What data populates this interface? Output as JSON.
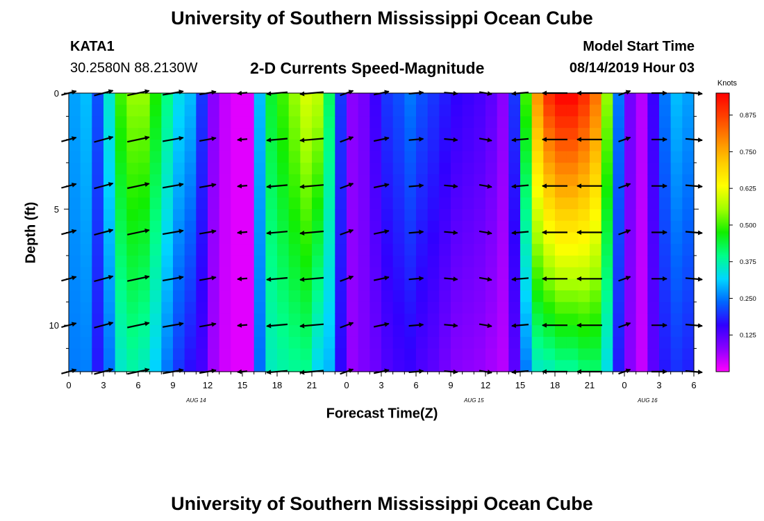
{
  "header": {
    "title_top": "University of Southern Mississippi Ocean Cube",
    "title_bottom": "University of Southern Mississippi Ocean Cube",
    "station_id": "KATA1",
    "coordinates": "30.2580N 88.2130W",
    "model_start_label": "Model Start Time",
    "model_start_value": "08/14/2019 Hour 03"
  },
  "colors": {
    "background": "#ffffff",
    "arrow": "#000000",
    "palette": [
      "#ff00ff",
      "#8a00ff",
      "#3000ff",
      "#0066ff",
      "#00d6ff",
      "#00ff88",
      "#11ee00",
      "#a0ff00",
      "#ffff00",
      "#ffcc00",
      "#ff8800",
      "#ff4000",
      "#ff0000"
    ]
  },
  "chart_data": {
    "type": "heatmap",
    "title": "2-D Currents Speed-Magnitude",
    "xlabel": "Forecast Time(Z)",
    "ylabel": "Depth (ft)",
    "colorbar_label": "Knots",
    "colorbar_ticks": [
      "0.875",
      "0.750",
      "0.625",
      "0.500",
      "0.375",
      "0.250",
      "0.125"
    ],
    "colorbar_tick_values": [
      0.875,
      0.75,
      0.625,
      0.5,
      0.375,
      0.25,
      0.125
    ],
    "color_range": [
      0.0,
      0.95
    ],
    "y_ticks": [
      "0",
      "5",
      "10"
    ],
    "y_tick_values": [
      0,
      5,
      10
    ],
    "ylim": [
      0,
      12
    ],
    "x_tick_labels": [
      "0",
      "3",
      "6",
      "9",
      "12",
      "15",
      "18",
      "21",
      "0",
      "3",
      "6",
      "9",
      "12",
      "15",
      "18",
      "21",
      "0",
      "3",
      "6"
    ],
    "x_range_hours": [
      0,
      54
    ],
    "date_labels": [
      "AUG 14",
      "AUG 15",
      "AUG 16"
    ],
    "date_label_hours": [
      11,
      35,
      50
    ],
    "data_hours": [
      0,
      1,
      2,
      3,
      4,
      5,
      6,
      7,
      8,
      9,
      10,
      11,
      12,
      13,
      14,
      15,
      16,
      17,
      18,
      19,
      20,
      21,
      22,
      23,
      24,
      25,
      26,
      27,
      28,
      29,
      30,
      31,
      32,
      33,
      34,
      35,
      36,
      37,
      38,
      39,
      40,
      41,
      42,
      43,
      44,
      45,
      46,
      47,
      48,
      49,
      50,
      51,
      52,
      53
    ],
    "surface_speed_by_hour": [
      0.28,
      0.3,
      0.22,
      0.35,
      0.5,
      0.55,
      0.55,
      0.48,
      0.4,
      0.33,
      0.3,
      0.2,
      0.08,
      0.04,
      0.02,
      0.02,
      0.3,
      0.45,
      0.5,
      0.55,
      0.6,
      0.58,
      0.42,
      0.2,
      0.08,
      0.1,
      0.15,
      0.2,
      0.22,
      0.25,
      0.22,
      0.2,
      0.18,
      0.16,
      0.15,
      0.14,
      0.12,
      0.08,
      0.2,
      0.5,
      0.78,
      0.9,
      0.95,
      0.95,
      0.9,
      0.82,
      0.55,
      0.25,
      0.1,
      0.05,
      0.15,
      0.25,
      0.3,
      0.28
    ],
    "depth_decay_by_hour": [
      0.1,
      0.15,
      0.2,
      0.3,
      0.3,
      0.32,
      0.35,
      0.35,
      0.38,
      0.4,
      0.45,
      0.3,
      0.2,
      0.2,
      0.2,
      0.2,
      0.2,
      0.2,
      0.25,
      0.3,
      0.35,
      0.45,
      0.3,
      0.2,
      0.1,
      0.1,
      0.3,
      0.35,
      0.35,
      0.4,
      0.4,
      0.4,
      0.45,
      0.5,
      0.5,
      0.5,
      0.5,
      0.4,
      0.4,
      0.5,
      0.55,
      0.6,
      0.6,
      0.6,
      0.55,
      0.5,
      0.4,
      0.3,
      0.2,
      0.2,
      0.2,
      0.3,
      0.35,
      0.35
    ],
    "vector_depths_ft": [
      0,
      2,
      4,
      6,
      8,
      10,
      12
    ],
    "vector_hours": [
      0,
      3,
      6,
      9,
      12,
      15,
      18,
      21,
      24,
      27,
      30,
      33,
      36,
      39,
      42,
      45,
      48,
      51,
      54
    ],
    "vector_direction_deg": [
      15,
      15,
      12,
      10,
      10,
      185,
      185,
      185,
      20,
      12,
      5,
      355,
      350,
      185,
      180,
      180,
      20,
      0,
      355
    ],
    "vector_magnitude_knots": [
      0.25,
      0.4,
      0.5,
      0.45,
      0.3,
      0.05,
      0.45,
      0.55,
      0.2,
      0.25,
      0.22,
      0.18,
      0.15,
      0.3,
      0.85,
      0.6,
      0.15,
      0.25,
      0.3
    ]
  }
}
